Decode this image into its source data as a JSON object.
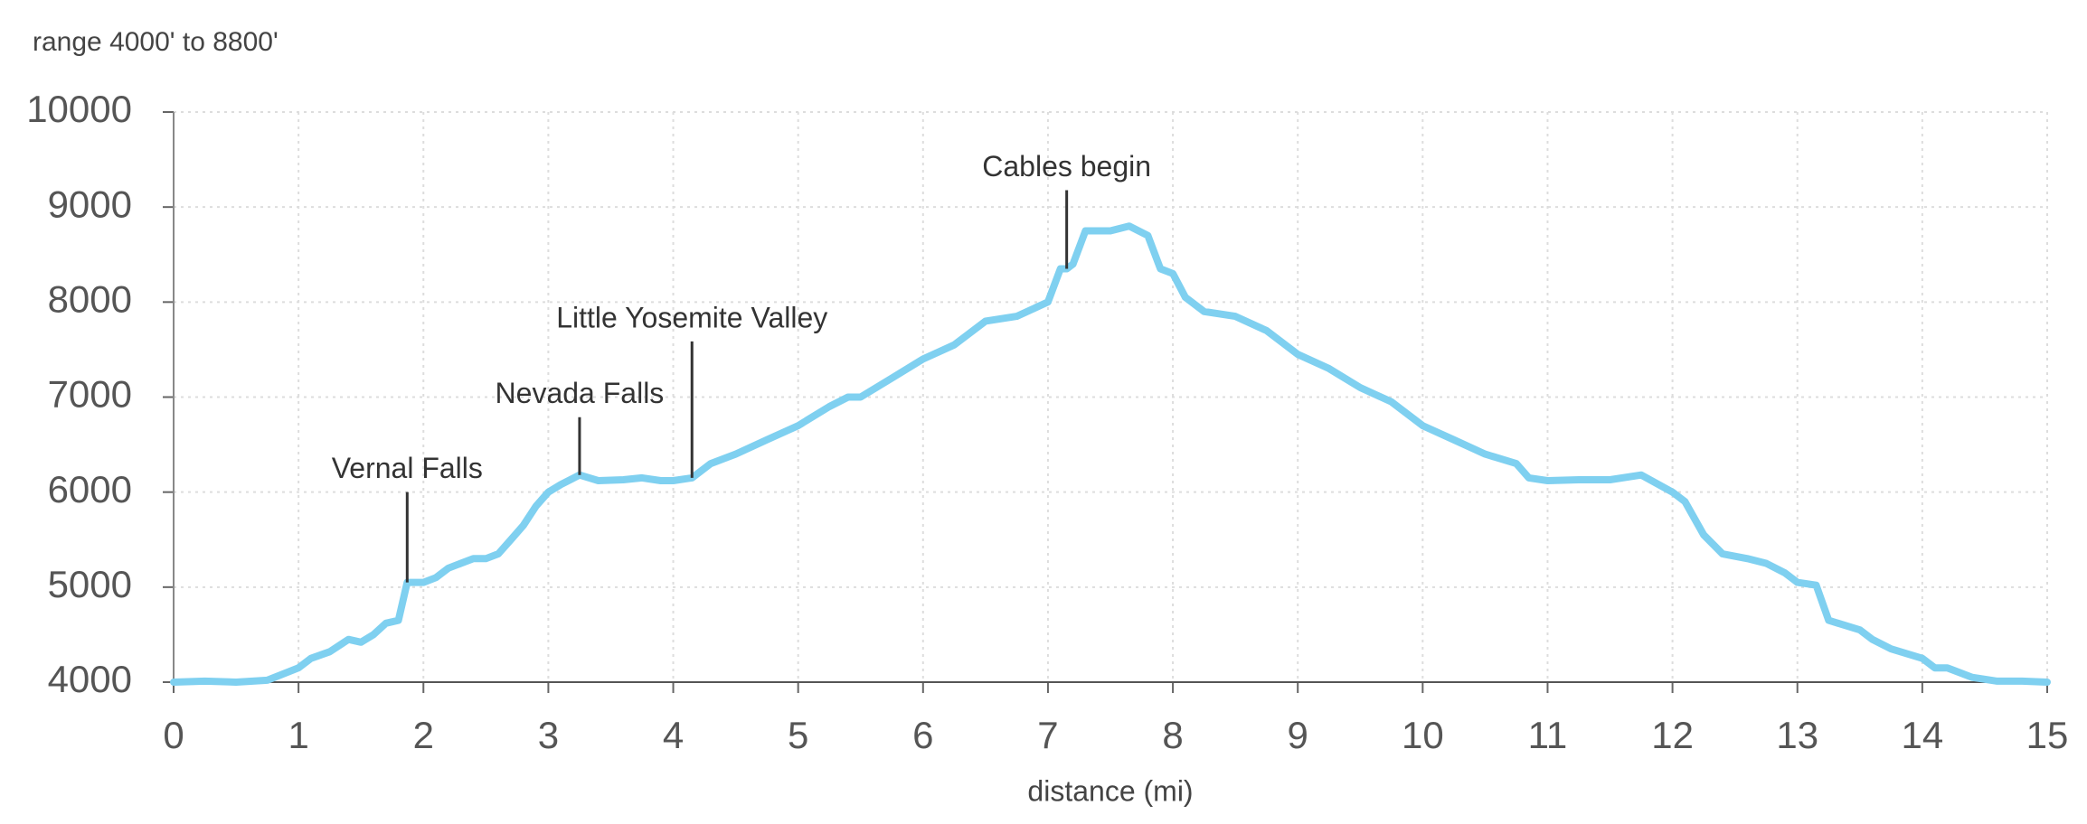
{
  "chart_data": {
    "type": "line",
    "subtitle": "range 4000' to 8800'",
    "x_label": "distance (mi)",
    "xlim": [
      0,
      15
    ],
    "xticks": [
      0,
      1,
      2,
      3,
      4,
      5,
      6,
      7,
      8,
      9,
      10,
      11,
      12,
      13,
      14,
      15
    ],
    "ylim": [
      4000,
      10000
    ],
    "yticks": [
      4000,
      5000,
      6000,
      7000,
      8000,
      9000,
      10000
    ],
    "grid": true,
    "series": [
      {
        "color": "#7fd0f0",
        "x": [
          0,
          0.25,
          0.5,
          0.75,
          1,
          1.1,
          1.25,
          1.4,
          1.5,
          1.6,
          1.7,
          1.8,
          1.87,
          2.0,
          2.1,
          2.2,
          2.3,
          2.4,
          2.5,
          2.6,
          2.7,
          2.8,
          2.9,
          3.0,
          3.1,
          3.25,
          3.4,
          3.6,
          3.75,
          3.9,
          4.0,
          4.15,
          4.3,
          4.5,
          4.75,
          5.0,
          5.25,
          5.4,
          5.5,
          5.75,
          6.0,
          6.25,
          6.5,
          6.75,
          7.0,
          7.1,
          7.15,
          7.2,
          7.3,
          7.5,
          7.65,
          7.8,
          7.9,
          8.0,
          8.1,
          8.25,
          8.5,
          8.75,
          9.0,
          9.25,
          9.5,
          9.75,
          10.0,
          10.25,
          10.5,
          10.75,
          10.85,
          11.0,
          11.25,
          11.5,
          11.75,
          12.0,
          12.1,
          12.25,
          12.4,
          12.6,
          12.75,
          12.9,
          13.0,
          13.15,
          13.25,
          13.5,
          13.6,
          13.75,
          14.0,
          14.1,
          14.2,
          14.4,
          14.6,
          14.8,
          15.0
        ],
        "values": [
          4000,
          4010,
          4000,
          4020,
          4150,
          4250,
          4320,
          4450,
          4420,
          4500,
          4620,
          4650,
          5050,
          5050,
          5100,
          5200,
          5250,
          5300,
          5300,
          5350,
          5500,
          5650,
          5850,
          6000,
          6080,
          6180,
          6120,
          6130,
          6150,
          6120,
          6120,
          6150,
          6300,
          6400,
          6550,
          6700,
          6900,
          7000,
          7000,
          7200,
          7400,
          7550,
          7800,
          7850,
          8000,
          8350,
          8350,
          8400,
          8750,
          8750,
          8800,
          8700,
          8350,
          8300,
          8050,
          7900,
          7850,
          7700,
          7450,
          7300,
          7100,
          6950,
          6700,
          6550,
          6400,
          6300,
          6150,
          6120,
          6130,
          6130,
          6180,
          6000,
          5900,
          5550,
          5350,
          5300,
          5250,
          5150,
          5050,
          5020,
          4650,
          4550,
          4450,
          4350,
          4250,
          4150,
          4150,
          4050,
          4010,
          4010,
          4000
        ]
      }
    ],
    "annotations": [
      {
        "label": "Vernal Falls",
        "x": 1.87,
        "y": 5050
      },
      {
        "label": "Nevada Falls",
        "x": 3.25,
        "y": 6180
      },
      {
        "label": "Little Yosemite Valley",
        "x": 4.15,
        "y": 6150
      },
      {
        "label": "Cables begin",
        "x": 7.15,
        "y": 8350
      }
    ]
  }
}
